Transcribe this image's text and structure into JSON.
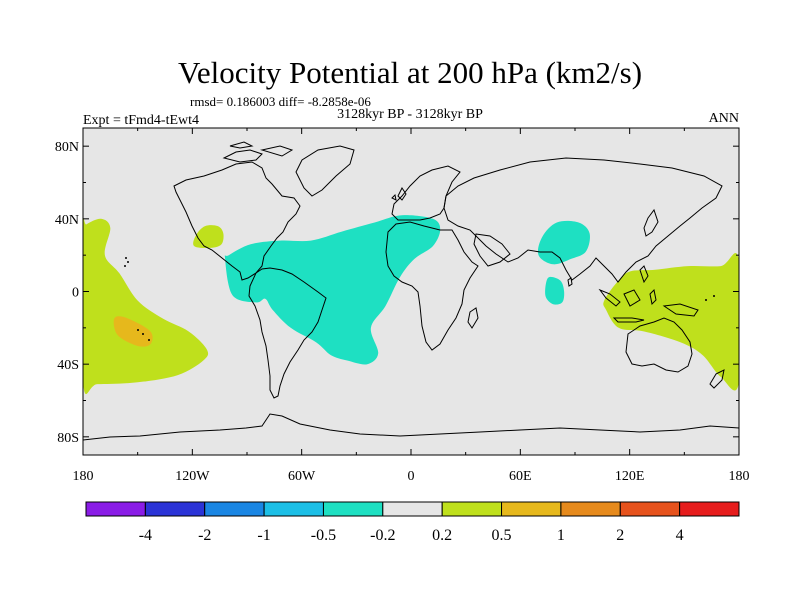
{
  "chart_data": {
    "type": "heatmap",
    "title": "Velocity Potential at 200 hPa (km2/s)",
    "stats": "rmsd= 0.186003  diff= -8.2858e-06",
    "subtitle": "3128kyr BP - 3128kyr BP",
    "left_label": "Expt = tFmd4-tEwt4",
    "right_label": "ANN",
    "x_ticks": [
      "180",
      "120W",
      "60W",
      "0",
      "60E",
      "120E",
      "180"
    ],
    "x_tick_values": [
      -180,
      -120,
      -60,
      0,
      60,
      120,
      180
    ],
    "y_ticks": [
      "80N",
      "40N",
      "0",
      "40S",
      "80S"
    ],
    "y_tick_values": [
      80,
      40,
      0,
      -40,
      -80
    ],
    "xlim": [
      -180,
      180
    ],
    "ylim": [
      -90,
      90
    ],
    "grid": false,
    "colorbar": {
      "colors": [
        "#8a1ce6",
        "#2b33d6",
        "#1a86e3",
        "#1cbfe6",
        "#1ee0c2",
        "#e6e6e6",
        "#bfe01c",
        "#e6b81c",
        "#e68a1c",
        "#e6521c",
        "#e61c1c"
      ],
      "labels": [
        "-4",
        "-2",
        "-1",
        "-0.5",
        "-0.2",
        "0.2",
        "0.5",
        "1",
        "2",
        "4"
      ]
    },
    "regions": [
      {
        "name": "negative-atlantic",
        "level": "-0.5 to -0.2",
        "color": "#1ee0c2",
        "points": [
          [
            -102,
            18
          ],
          [
            -98,
            -2
          ],
          [
            -85,
            -6
          ],
          [
            -80,
            -4
          ],
          [
            -76,
            -10
          ],
          [
            -66,
            -20
          ],
          [
            -52,
            -28
          ],
          [
            -44,
            -35
          ],
          [
            -35,
            -38
          ],
          [
            -24,
            -40
          ],
          [
            -18,
            -34
          ],
          [
            -22,
            -20
          ],
          [
            -14,
            -8
          ],
          [
            -6,
            8
          ],
          [
            2,
            18
          ],
          [
            12,
            25
          ],
          [
            16,
            34
          ],
          [
            12,
            40
          ],
          [
            -5,
            42
          ],
          [
            -20,
            38
          ],
          [
            -38,
            33
          ],
          [
            -55,
            28
          ],
          [
            -72,
            28
          ],
          [
            -88,
            26
          ],
          [
            -100,
            20
          ]
        ]
      },
      {
        "name": "negative-india",
        "level": "-0.5 to -0.2",
        "color": "#1ee0c2",
        "points": [
          [
            70,
            20
          ],
          [
            72,
            30
          ],
          [
            80,
            38
          ],
          [
            92,
            38
          ],
          [
            98,
            32
          ],
          [
            96,
            22
          ],
          [
            88,
            18
          ],
          [
            78,
            15
          ]
        ]
      },
      {
        "name": "negative-indian-ocean",
        "level": "-0.5 to -0.2",
        "color": "#1ee0c2",
        "points": [
          [
            76,
            8
          ],
          [
            82,
            6
          ],
          [
            84,
            0
          ],
          [
            83,
            -6
          ],
          [
            78,
            -7
          ],
          [
            74,
            -3
          ],
          [
            74,
            4
          ]
        ]
      },
      {
        "name": "positive-pacific",
        "level": "0.2 to 0.5",
        "color": "#bfe01c",
        "points": [
          [
            -180,
            33
          ],
          [
            -178,
            37
          ],
          [
            -170,
            40
          ],
          [
            -165,
            35
          ],
          [
            -168,
            20
          ],
          [
            -160,
            10
          ],
          [
            -150,
            -5
          ],
          [
            -136,
            -15
          ],
          [
            -122,
            -22
          ],
          [
            -112,
            -32
          ],
          [
            -114,
            -38
          ],
          [
            -128,
            -46
          ],
          [
            -150,
            -50
          ],
          [
            -172,
            -51
          ],
          [
            -180,
            -50
          ]
        ]
      },
      {
        "name": "positive-mexico",
        "level": "0.2 to 0.5",
        "color": "#bfe01c",
        "points": [
          [
            -119,
            25
          ],
          [
            -110,
            24
          ],
          [
            -104,
            26
          ],
          [
            -103,
            32
          ],
          [
            -106,
            36
          ],
          [
            -113,
            36
          ],
          [
            -118,
            31
          ]
        ]
      },
      {
        "name": "positive-west-pacific",
        "level": "0.2 to 0.5",
        "color": "#bfe01c",
        "points": [
          [
            107,
            -10
          ],
          [
            106,
            -5
          ],
          [
            113,
            5
          ],
          [
            120,
            11
          ],
          [
            134,
            12
          ],
          [
            152,
            14
          ],
          [
            170,
            14
          ],
          [
            180,
            17
          ],
          [
            180,
            -50
          ],
          [
            170,
            -47
          ],
          [
            160,
            -35
          ],
          [
            148,
            -28
          ],
          [
            128,
            -22
          ],
          [
            114,
            -20
          ]
        ]
      },
      {
        "name": "positive-core",
        "level": "0.5 to 1",
        "color": "#e6b81c",
        "points": [
          [
            -162,
            -14
          ],
          [
            -155,
            -15
          ],
          [
            -143,
            -22
          ],
          [
            -143,
            -29
          ],
          [
            -150,
            -30
          ],
          [
            -160,
            -25
          ],
          [
            -163,
            -19
          ]
        ]
      }
    ]
  }
}
